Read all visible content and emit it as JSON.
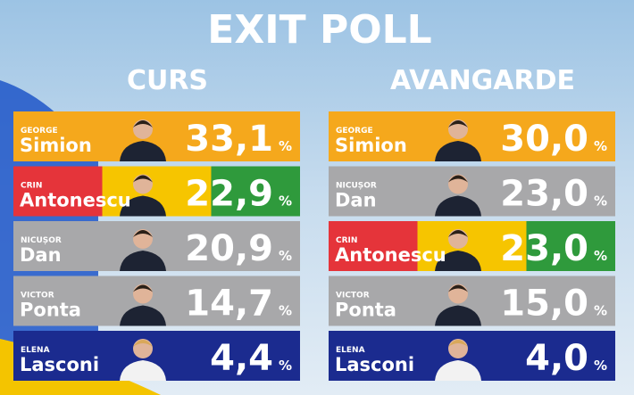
{
  "title": "EXIT POLL",
  "unit": "%",
  "polls": [
    {
      "name": "CURS",
      "rows": [
        {
          "first": "GEORGE",
          "last": "Simion",
          "value": "33,1",
          "color": [
            "#f5a81c"
          ]
        },
        {
          "first": "CRIN",
          "last": "Antonescu",
          "value": "22,9",
          "color": [
            "#e5343a",
            "#f6c500",
            "#2f9a3c"
          ]
        },
        {
          "first": "NICUȘOR",
          "last": "Dan",
          "value": "20,9",
          "color": [
            "#a8a8aa"
          ]
        },
        {
          "first": "VICTOR",
          "last": "Ponta",
          "value": "14,7",
          "color": [
            "#a8a8aa"
          ]
        },
        {
          "first": "ELENA",
          "last": "Lasconi",
          "value": "4,4",
          "color": [
            "#1b2b8f"
          ]
        }
      ]
    },
    {
      "name": "AVANGARDE",
      "rows": [
        {
          "first": "GEORGE",
          "last": "Simion",
          "value": "30,0",
          "color": [
            "#f5a81c"
          ]
        },
        {
          "first": "NICUȘOR",
          "last": "Dan",
          "value": "23,0",
          "color": [
            "#a8a8aa"
          ]
        },
        {
          "first": "CRIN",
          "last": "Antonescu",
          "value": "23,0",
          "color": [
            "#e5343a",
            "#f6c500",
            "#2f9a3c"
          ]
        },
        {
          "first": "VICTOR",
          "last": "Ponta",
          "value": "15,0",
          "color": [
            "#a8a8aa"
          ]
        },
        {
          "first": "ELENA",
          "last": "Lasconi",
          "value": "4,0",
          "color": [
            "#1b2b8f"
          ]
        }
      ]
    }
  ]
}
